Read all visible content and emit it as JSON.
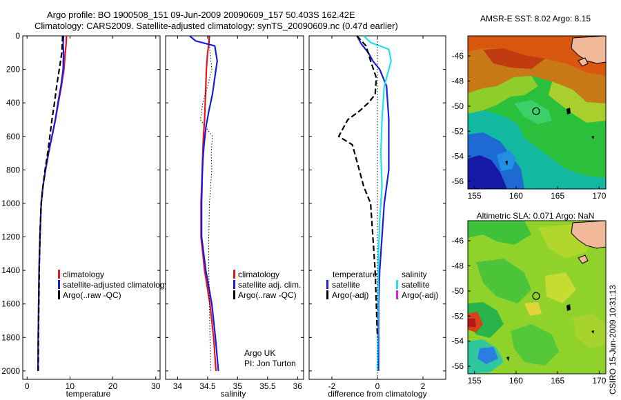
{
  "header": {
    "line1": "Argo profile: BO 1900508_151 09-Jun-2009 20090609_157 50.403S 162.42E",
    "line2": "Climatology: CARS2009. Satellite-adjusted climatology: synTS_20090609.nc (0.47d earlier)"
  },
  "side_label": "CSIRO 15-Jun-2009 10:31:13",
  "colors": {
    "climatology": "#e8141e",
    "satellite": "#1a1ae6",
    "argo": "#000000",
    "salinity_sat": "#22e0ee",
    "salinity_argo": "#e020e0",
    "land": "#f2b89a"
  },
  "chart_data": [
    {
      "type": "line",
      "xlabel": "temperature",
      "xlim": [
        -1,
        31
      ],
      "ylim": [
        0,
        2050
      ],
      "x_ticks": [
        "0",
        "10",
        "20",
        "30"
      ],
      "y_ticks": [
        "0",
        "200",
        "400",
        "600",
        "800",
        "1000",
        "1200",
        "1400",
        "1600",
        "1800",
        "2000"
      ],
      "legend": [
        "climatology",
        "satellite-adjusted climatology",
        "Argo(..raw -QC)"
      ],
      "series": [
        {
          "name": "climatology",
          "color": "#e8141e",
          "style": "solid",
          "x": [
            9.2,
            9.1,
            8.9,
            8.6,
            8.0,
            7.3,
            6.6,
            5.8,
            5.0,
            4.3,
            3.7,
            3.3,
            3.0,
            2.8,
            2.7,
            2.6,
            2.55
          ],
          "depth": [
            0,
            50,
            100,
            200,
            300,
            400,
            500,
            600,
            700,
            800,
            900,
            1000,
            1200,
            1400,
            1600,
            1800,
            2000
          ]
        },
        {
          "name": "satellite-adjusted climatology",
          "color": "#1a1ae6",
          "style": "solid",
          "x": [
            8.5,
            8.4,
            8.5,
            8.4,
            7.9,
            7.2,
            6.6,
            5.8,
            5.0,
            4.3,
            3.7,
            3.3,
            3.0,
            2.8,
            2.7,
            2.6,
            2.55
          ],
          "depth": [
            0,
            50,
            100,
            200,
            300,
            400,
            500,
            600,
            700,
            800,
            900,
            1000,
            1200,
            1400,
            1600,
            1800,
            2000
          ]
        },
        {
          "name": "Argo(..raw -QC)",
          "color": "#000000",
          "style": "dashed",
          "x": [
            8.3,
            8.2,
            8.1,
            7.5,
            6.9,
            6.4,
            5.8,
            5.3,
            4.8,
            4.2,
            3.7,
            3.3,
            3.0,
            2.85,
            2.75,
            2.65,
            2.6
          ],
          "depth": [
            0,
            50,
            100,
            200,
            300,
            400,
            500,
            600,
            700,
            800,
            900,
            1000,
            1200,
            1400,
            1600,
            1800,
            2000
          ]
        }
      ]
    },
    {
      "type": "line",
      "xlabel": "salinity",
      "xlim": [
        33.8,
        36.1
      ],
      "ylim": [
        0,
        2050
      ],
      "x_ticks": [
        "34",
        "34.5",
        "35",
        "35.5",
        "36"
      ],
      "legend": [
        "climatology",
        "satellite adj. clim.",
        "Argo(..raw -QC)"
      ],
      "annotation": [
        "Argo UK",
        "PI: Jon Turton"
      ],
      "series": [
        {
          "name": "climatology",
          "color": "#e8141e",
          "style": "solid",
          "x": [
            34.53,
            34.52,
            34.5,
            34.48,
            34.47,
            34.46,
            34.45,
            34.43,
            34.42,
            34.41,
            34.4,
            34.39,
            34.39,
            34.45,
            34.54,
            34.6,
            34.64
          ],
          "depth": [
            0,
            50,
            100,
            200,
            300,
            400,
            500,
            600,
            700,
            800,
            900,
            1000,
            1200,
            1400,
            1600,
            1800,
            2000
          ]
        },
        {
          "name": "satellite adj. clim.",
          "color": "#1a1ae6",
          "style": "solid",
          "x": [
            34.2,
            34.3,
            34.62,
            34.66,
            34.62,
            34.58,
            34.52,
            34.47,
            34.44,
            34.42,
            34.41,
            34.4,
            34.4,
            34.47,
            34.57,
            34.63,
            34.68
          ],
          "depth": [
            0,
            30,
            60,
            150,
            250,
            350,
            450,
            550,
            650,
            750,
            850,
            1000,
            1200,
            1400,
            1600,
            1800,
            2000
          ]
        },
        {
          "name": "Argo(..raw -QC)",
          "color": "#000000",
          "style": "dotted",
          "x": [
            34.52,
            34.54,
            34.57,
            34.5,
            34.42,
            34.38,
            34.48,
            34.58,
            34.56,
            34.57,
            34.55,
            34.53,
            34.52,
            34.52,
            34.53,
            34.54,
            34.55
          ],
          "depth": [
            0,
            100,
            200,
            300,
            400,
            500,
            550,
            600,
            700,
            800,
            900,
            1000,
            1200,
            1400,
            1600,
            1800,
            2000
          ]
        }
      ]
    },
    {
      "type": "line",
      "xlabel": "difference from climatology",
      "xlim": [
        -3,
        3
      ],
      "ylim": [
        0,
        2050
      ],
      "x_ticks": [
        "-2",
        "0",
        "2"
      ],
      "legend_temperature": {
        "heading": "temperature",
        "items": [
          "satellite",
          "Argo(-adj)"
        ]
      },
      "legend_salinity": {
        "heading": "salinity",
        "items": [
          "satellite",
          "Argo(-adj)"
        ]
      },
      "series": [
        {
          "name": "temperature satellite",
          "color": "#1a1ae6",
          "style": "solid",
          "x": [
            -0.9,
            -0.7,
            -0.4,
            -0.2,
            0.1,
            0.4,
            0.5,
            0.5,
            0.5,
            0.4,
            0.3,
            0.2,
            0.1,
            0.05,
            0.05,
            0.05,
            0.05
          ],
          "depth": [
            0,
            50,
            100,
            150,
            200,
            300,
            500,
            700,
            800,
            900,
            1000,
            1200,
            1400,
            1600,
            1800,
            1900,
            2000
          ]
        },
        {
          "name": "salinity satellite",
          "color": "#22e0ee",
          "style": "solid",
          "x": [
            -0.6,
            -0.3,
            0.5,
            0.6,
            0.3,
            0.2,
            0.15,
            0.2,
            0.1,
            0.05,
            0.02,
            0.0
          ],
          "depth": [
            0,
            40,
            80,
            150,
            300,
            500,
            700,
            900,
            1100,
            1300,
            1600,
            2000
          ]
        },
        {
          "name": "temperature Argo(-adj)",
          "color": "#000000",
          "style": "dashed",
          "x": [
            -0.9,
            -0.5,
            -0.3,
            -0.05,
            -0.1,
            -0.4,
            -0.8,
            -1.3,
            -1.5,
            -1.7,
            -1.1,
            -1.0,
            -0.8,
            -0.6,
            -0.3,
            -0.2,
            -0.1,
            0.0
          ],
          "depth": [
            0,
            60,
            150,
            250,
            350,
            400,
            450,
            500,
            550,
            600,
            650,
            700,
            800,
            900,
            1000,
            1200,
            1400,
            1800
          ]
        },
        {
          "name": "reference zero",
          "color": "#000000",
          "style": "dotted",
          "x": [
            0,
            0
          ],
          "depth": [
            0,
            2050
          ]
        }
      ]
    },
    {
      "type": "heatmap",
      "title": "AMSR-E SST: 8.02 Argo: 8.15",
      "x_ticks": [
        "155",
        "160",
        "165",
        "170"
      ],
      "y_ticks": [
        "-46",
        "-48",
        "-50",
        "-52",
        "-54",
        "-56"
      ],
      "xlim": [
        154.2,
        170.8
      ],
      "ylim": [
        -56.6,
        -44.4
      ],
      "profile_location": [
        162.42,
        -50.403
      ]
    },
    {
      "type": "heatmap",
      "title": "Altimetric SLA: 0.071 Argo: NaN",
      "x_ticks": [
        "155",
        "160",
        "165",
        "170"
      ],
      "y_ticks": [
        "-46",
        "-48",
        "-50",
        "-52",
        "-54",
        "-56"
      ],
      "xlim": [
        154.2,
        170.8
      ],
      "ylim": [
        -56.6,
        -44.4
      ],
      "profile_location": [
        162.42,
        -50.403
      ]
    }
  ]
}
